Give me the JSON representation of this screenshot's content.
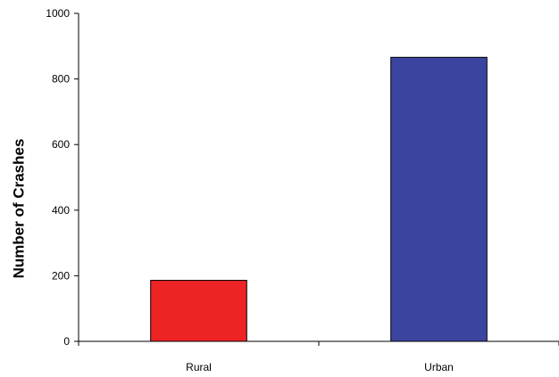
{
  "chart_data": {
    "type": "bar",
    "title": "",
    "xlabel": "",
    "ylabel": "Number of Crashes",
    "categories": [
      "Rural",
      "Urban"
    ],
    "values": [
      186,
      866
    ],
    "bar_colors": [
      "#ee2324",
      "#3b45a0"
    ],
    "ylim": [
      0,
      1000
    ],
    "yticks": [
      0,
      200,
      400,
      600,
      800,
      1000
    ],
    "grid": false,
    "legend": "none"
  }
}
